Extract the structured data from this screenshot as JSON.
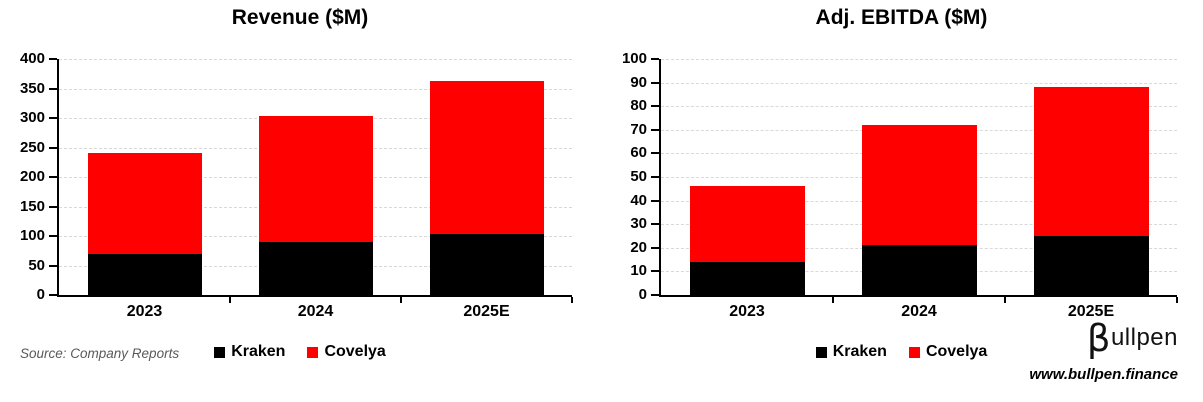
{
  "chart_data": [
    {
      "type": "bar",
      "stacked": true,
      "title": "Revenue ($M)",
      "categories": [
        "2023",
        "2024",
        "2025E"
      ],
      "series": [
        {
          "name": "Kraken",
          "color": "#000000",
          "values": [
            70,
            90,
            103
          ]
        },
        {
          "name": "Covelya",
          "color": "#FF0000",
          "values": [
            170,
            213,
            260
          ]
        }
      ],
      "stack_totals": [
        240,
        303,
        363
      ],
      "ylim": [
        0,
        400
      ],
      "ytick_step": 50,
      "grid": "horizontal-dashed",
      "legend_position": "bottom",
      "xlabel": "",
      "ylabel": ""
    },
    {
      "type": "bar",
      "stacked": true,
      "title": "Adj. EBITDA ($M)",
      "categories": [
        "2023",
        "2024",
        "2025E"
      ],
      "series": [
        {
          "name": "Kraken",
          "color": "#000000",
          "values": [
            14,
            21,
            25
          ]
        },
        {
          "name": "Covelya",
          "color": "#FF0000",
          "values": [
            32,
            51,
            63
          ]
        }
      ],
      "stack_totals": [
        46,
        72,
        88
      ],
      "ylim": [
        0,
        100
      ],
      "ytick_step": 10,
      "grid": "horizontal-dashed",
      "legend_position": "bottom",
      "xlabel": "",
      "ylabel": ""
    }
  ],
  "footer": {
    "source": "Source: Company Reports",
    "logo_beta": "β",
    "logo_rest": "ullpen",
    "website": "www.bullpen.finance"
  },
  "colors": {
    "kraken": "#000000",
    "covelya": "#FF0000",
    "gridline": "#D9D9D9",
    "axis": "#000000",
    "source_text": "#595959",
    "background": "#FFFFFF"
  }
}
